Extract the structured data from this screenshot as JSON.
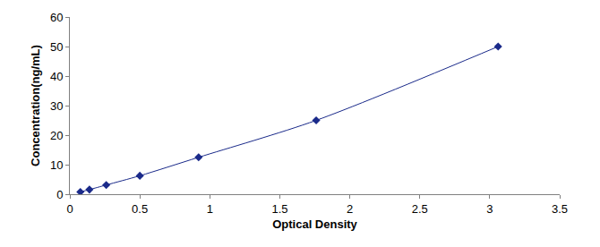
{
  "chart_data": {
    "type": "line",
    "x": [
      0.075,
      0.14,
      0.26,
      0.5,
      0.92,
      1.76,
      3.06
    ],
    "values": [
      0.78,
      1.56,
      3.12,
      6.25,
      12.5,
      25,
      50
    ],
    "color": "#1a2a8a",
    "marker": "diamond",
    "line_style": "smooth",
    "xlabel": "Optical Density",
    "ylabel": "Concentration(ng/mL)",
    "xlim": [
      0,
      3.5
    ],
    "xticks": [
      0,
      0.5,
      1,
      1.5,
      2,
      2.5,
      3,
      3.5
    ],
    "ylim": [
      0,
      60
    ],
    "yticks": [
      0,
      10,
      20,
      30,
      40,
      50,
      60
    ],
    "grid": false
  }
}
